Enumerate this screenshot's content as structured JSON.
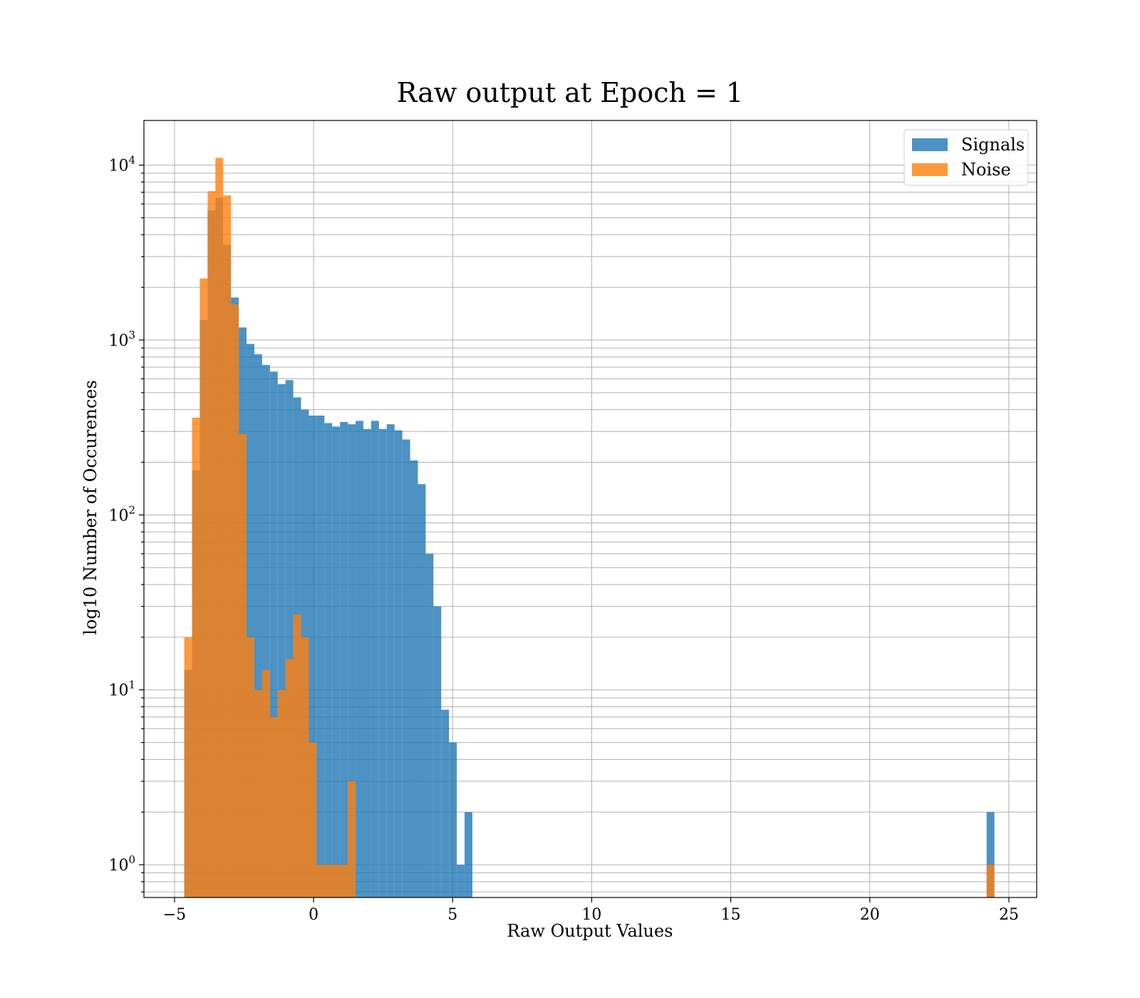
{
  "chart_data": {
    "type": "bar",
    "title": "Raw output at Epoch = 1",
    "xlabel": "Raw Output Values",
    "ylabel": "log10 Number of Occurences",
    "xlim": [
      -6.1,
      26
    ],
    "ylim": [
      0.65,
      18000
    ],
    "yscale": "log",
    "grid": true,
    "legend_position": "top-right",
    "x_ticks": [
      -5,
      0,
      5,
      10,
      15,
      20,
      25
    ],
    "x_tick_labels": [
      "−5",
      "0",
      "5",
      "10",
      "15",
      "20",
      "25"
    ],
    "y_ticks": [
      {
        "value": 1,
        "base": "10",
        "exp": "0"
      },
      {
        "value": 10,
        "base": "10",
        "exp": "1"
      },
      {
        "value": 100,
        "base": "10",
        "exp": "2"
      },
      {
        "value": 1000,
        "base": "10",
        "exp": "3"
      },
      {
        "value": 10000,
        "base": "10",
        "exp": "4"
      }
    ],
    "series": [
      {
        "name": "Signals",
        "color": "#1f77b4",
        "opacity": 0.8,
        "bins": [
          [
            -4.65,
            -4.37,
            13
          ],
          [
            -4.37,
            -4.09,
            180
          ],
          [
            -4.09,
            -3.81,
            1300
          ],
          [
            -3.81,
            -3.53,
            5500
          ],
          [
            -3.53,
            -3.25,
            6500
          ],
          [
            -3.25,
            -2.97,
            3500
          ],
          [
            -2.97,
            -2.69,
            1750
          ],
          [
            -2.69,
            -2.41,
            1180
          ],
          [
            -2.41,
            -2.13,
            950
          ],
          [
            -2.13,
            -1.85,
            830
          ],
          [
            -1.85,
            -1.57,
            720
          ],
          [
            -1.57,
            -1.29,
            660
          ],
          [
            -1.29,
            -1.01,
            560
          ],
          [
            -1.01,
            -0.73,
            590
          ],
          [
            -0.73,
            -0.45,
            470
          ],
          [
            -0.45,
            -0.17,
            400
          ],
          [
            -0.17,
            0.11,
            370
          ],
          [
            0.11,
            0.39,
            370
          ],
          [
            0.39,
            0.67,
            335
          ],
          [
            0.67,
            0.95,
            320
          ],
          [
            0.95,
            1.23,
            340
          ],
          [
            1.23,
            1.51,
            330
          ],
          [
            1.51,
            1.79,
            345
          ],
          [
            1.79,
            2.07,
            310
          ],
          [
            2.07,
            2.35,
            345
          ],
          [
            2.35,
            2.63,
            310
          ],
          [
            2.63,
            2.91,
            330
          ],
          [
            2.91,
            3.19,
            305
          ],
          [
            3.19,
            3.47,
            270
          ],
          [
            3.47,
            3.75,
            205
          ],
          [
            3.75,
            4.03,
            150
          ],
          [
            4.03,
            4.31,
            60
          ],
          [
            4.31,
            4.59,
            30
          ],
          [
            4.59,
            4.87,
            7.7
          ],
          [
            4.87,
            5.15,
            5
          ],
          [
            5.15,
            5.43,
            1
          ],
          [
            5.43,
            5.71,
            2
          ],
          [
            24.2,
            24.48,
            2
          ]
        ]
      },
      {
        "name": "Noise",
        "color": "#ff7f0e",
        "opacity": 0.8,
        "bins": [
          [
            -4.65,
            -4.37,
            20
          ],
          [
            -4.37,
            -4.09,
            360
          ],
          [
            -4.09,
            -3.81,
            2250
          ],
          [
            -3.81,
            -3.53,
            7100
          ],
          [
            -3.53,
            -3.25,
            11000
          ],
          [
            -3.25,
            -2.97,
            6700
          ],
          [
            -2.97,
            -2.69,
            1600
          ],
          [
            -2.69,
            -2.41,
            290
          ],
          [
            -2.41,
            -2.13,
            20
          ],
          [
            -2.13,
            -1.85,
            10
          ],
          [
            -1.85,
            -1.57,
            13
          ],
          [
            -1.57,
            -1.29,
            7
          ],
          [
            -1.29,
            -1.01,
            10
          ],
          [
            -1.01,
            -0.73,
            15
          ],
          [
            -0.73,
            -0.45,
            27
          ],
          [
            -0.45,
            -0.17,
            20
          ],
          [
            -0.17,
            0.11,
            5
          ],
          [
            0.11,
            0.39,
            1
          ],
          [
            0.39,
            0.67,
            1
          ],
          [
            0.67,
            0.95,
            1
          ],
          [
            0.95,
            1.23,
            1
          ],
          [
            1.23,
            1.51,
            3
          ],
          [
            24.2,
            24.48,
            1
          ]
        ]
      }
    ]
  }
}
